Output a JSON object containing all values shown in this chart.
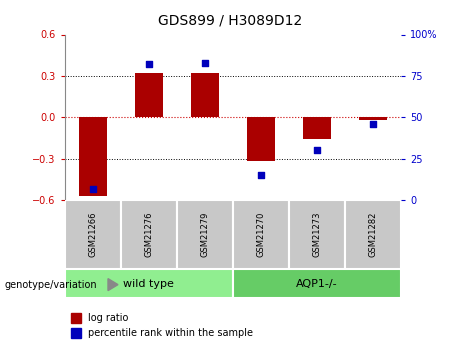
{
  "title": "GDS899 / H3089D12",
  "samples": [
    "GSM21266",
    "GSM21276",
    "GSM21279",
    "GSM21270",
    "GSM21273",
    "GSM21282"
  ],
  "log_ratios": [
    -0.57,
    0.32,
    0.32,
    -0.32,
    -0.16,
    -0.02
  ],
  "percentile_ranks": [
    7,
    82,
    83,
    15,
    30,
    46
  ],
  "group1_label": "wild type",
  "group2_label": "AQP1-/-",
  "group1_color": "#90EE90",
  "group2_color": "#66CC66",
  "group_boundary": 3,
  "ylim_left": [
    -0.6,
    0.6
  ],
  "ylim_right": [
    0,
    100
  ],
  "yticks_left": [
    -0.6,
    -0.3,
    0,
    0.3,
    0.6
  ],
  "yticks_right": [
    0,
    25,
    50,
    75,
    100
  ],
  "bar_color": "#AA0000",
  "dot_color": "#0000BB",
  "bar_width": 0.5,
  "dot_size": 18,
  "left_label_color": "#CC0000",
  "right_label_color": "#0000CC",
  "hline_color": "#CC0000",
  "grid_color": "#000000",
  "sample_box_color": "#C8C8C8",
  "legend_bar_label": "log ratio",
  "legend_dot_label": "percentile rank within the sample",
  "genotype_label": "genotype/variation",
  "title_fontsize": 10,
  "tick_fontsize": 7,
  "sample_fontsize": 6,
  "group_fontsize": 8,
  "legend_fontsize": 7,
  "genotype_fontsize": 7
}
